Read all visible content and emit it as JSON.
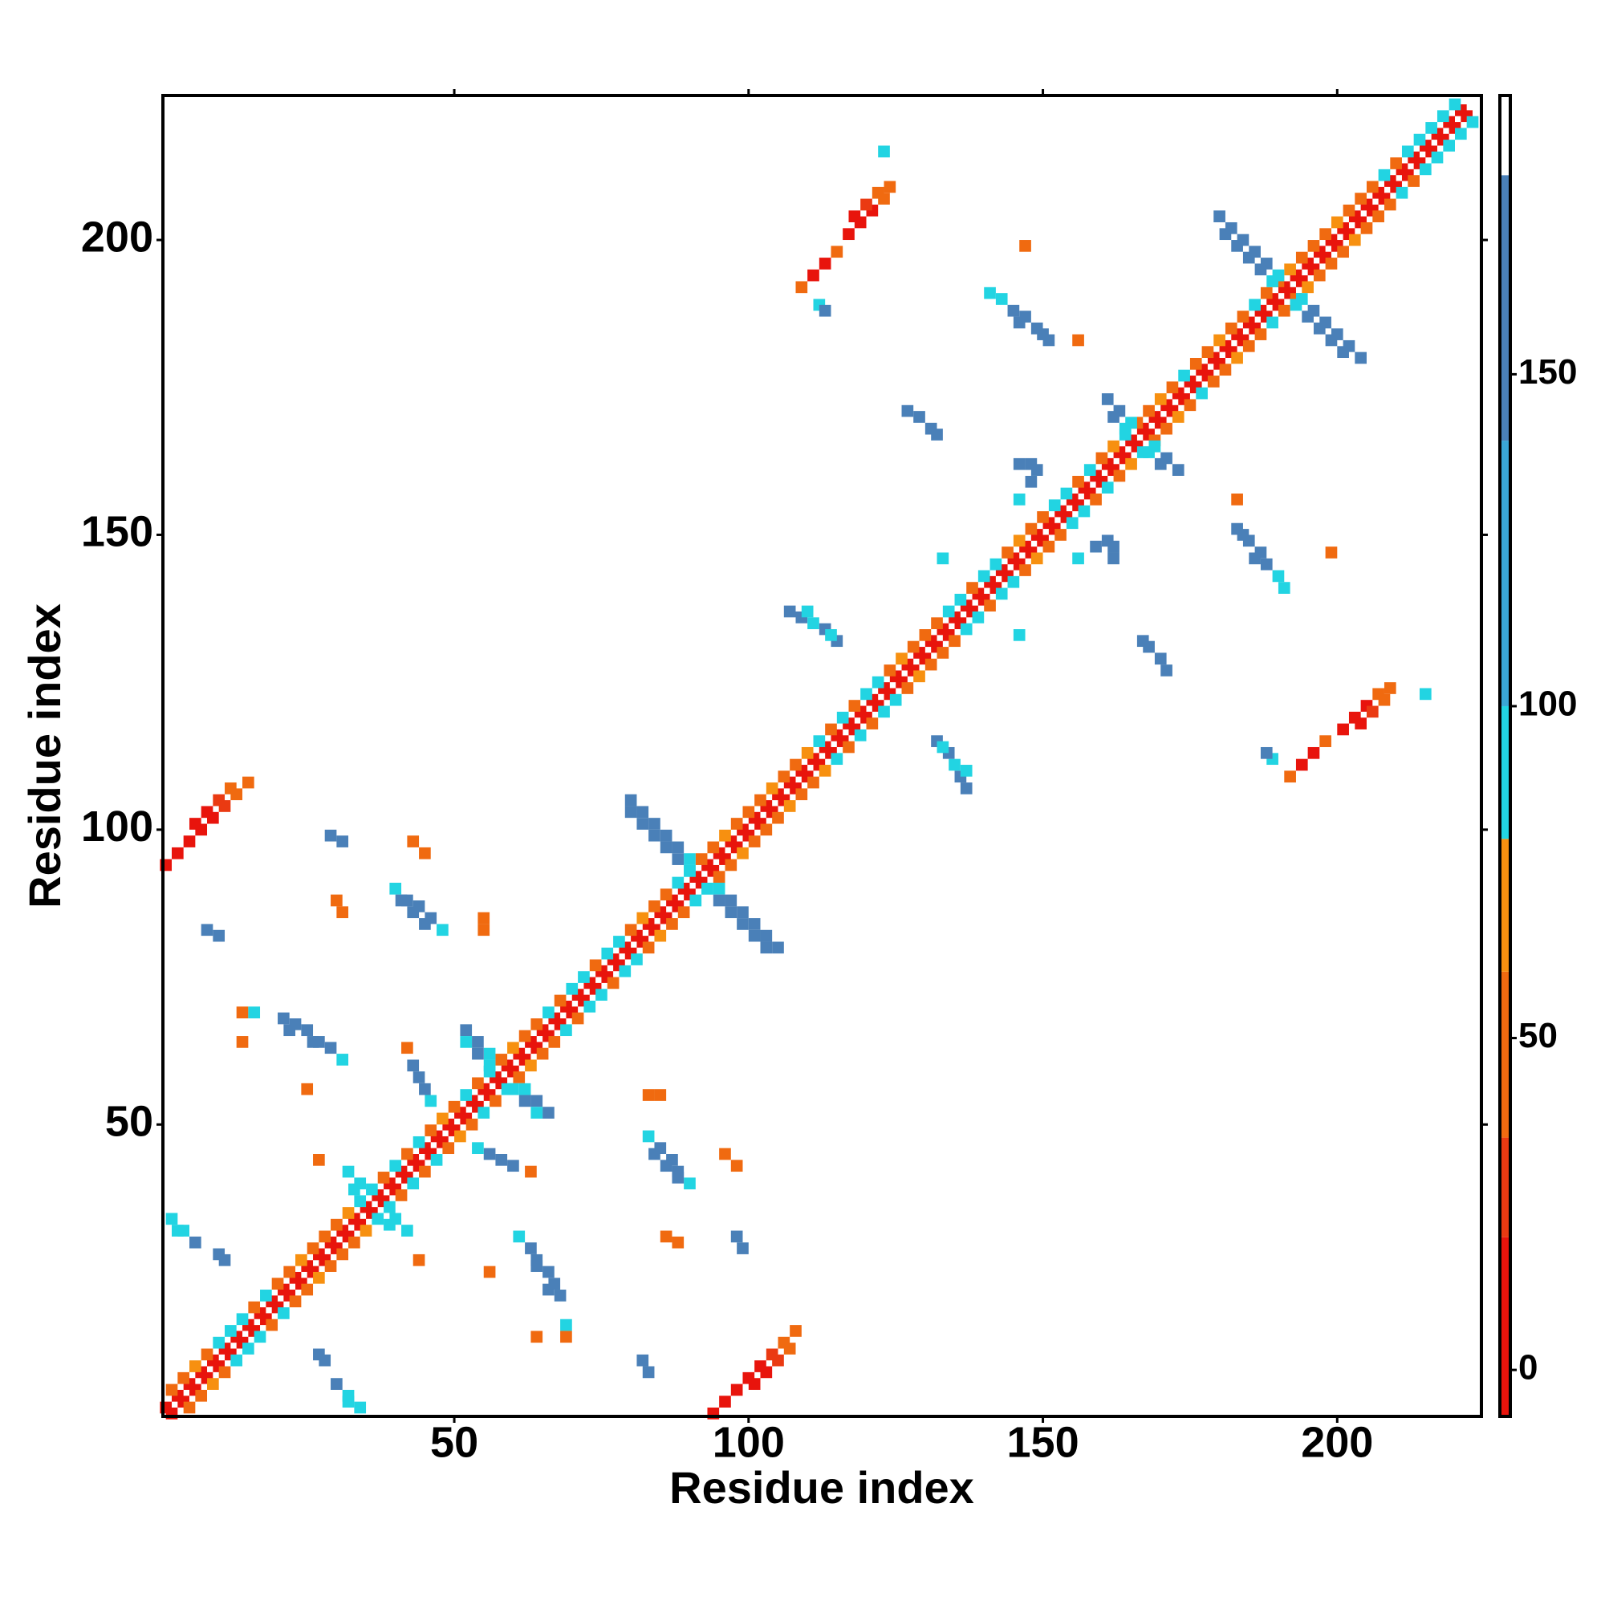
{
  "chart_data": {
    "type": "heatmap",
    "x_label": "Residue index",
    "y_label": "Residue index",
    "xlim": [
      0.5,
      224.5
    ],
    "ylim": [
      0.5,
      224.5
    ],
    "xticks": [
      50,
      100,
      150,
      200
    ],
    "yticks": [
      50,
      100,
      150,
      200
    ],
    "symmetric": true,
    "clim": [
      -7,
      192
    ],
    "cticks": [
      0,
      50,
      100,
      150
    ],
    "color_edges": [
      -7,
      20,
      35,
      60,
      80,
      100,
      140,
      180,
      192
    ],
    "colors": [
      "#e8140c",
      "#ea3a12",
      "#f06a10",
      "#f79010",
      "#22d4e2",
      "#3aa6d6",
      "#4a80b8",
      "#ffffff"
    ],
    "points": [
      [
        1,
        2,
        10
      ],
      [
        3,
        4,
        10
      ],
      [
        5,
        6,
        10
      ],
      [
        7,
        8,
        10
      ],
      [
        9,
        10,
        10
      ],
      [
        11,
        12,
        10
      ],
      [
        13,
        14,
        10
      ],
      [
        15,
        16,
        10
      ],
      [
        17,
        18,
        10
      ],
      [
        19,
        20,
        10
      ],
      [
        21,
        22,
        10
      ],
      [
        23,
        24,
        10
      ],
      [
        25,
        26,
        10
      ],
      [
        27,
        28,
        10
      ],
      [
        29,
        30,
        10
      ],
      [
        31,
        32,
        10
      ],
      [
        33,
        34,
        10
      ],
      [
        35,
        36,
        10
      ],
      [
        37,
        38,
        10
      ],
      [
        39,
        40,
        10
      ],
      [
        41,
        42,
        10
      ],
      [
        43,
        44,
        10
      ],
      [
        45,
        46,
        10
      ],
      [
        47,
        48,
        10
      ],
      [
        49,
        50,
        10
      ],
      [
        51,
        52,
        10
      ],
      [
        53,
        54,
        10
      ],
      [
        55,
        56,
        10
      ],
      [
        57,
        58,
        10
      ],
      [
        59,
        60,
        10
      ],
      [
        61,
        62,
        10
      ],
      [
        63,
        64,
        10
      ],
      [
        65,
        66,
        10
      ],
      [
        67,
        68,
        10
      ],
      [
        69,
        70,
        10
      ],
      [
        71,
        72,
        10
      ],
      [
        73,
        74,
        10
      ],
      [
        75,
        76,
        10
      ],
      [
        77,
        78,
        10
      ],
      [
        79,
        80,
        10
      ],
      [
        81,
        82,
        10
      ],
      [
        83,
        84,
        10
      ],
      [
        85,
        86,
        10
      ],
      [
        87,
        88,
        10
      ],
      [
        89,
        90,
        10
      ],
      [
        91,
        92,
        10
      ],
      [
        93,
        94,
        10
      ],
      [
        95,
        96,
        10
      ],
      [
        97,
        98,
        10
      ],
      [
        99,
        100,
        10
      ],
      [
        101,
        102,
        10
      ],
      [
        103,
        104,
        10
      ],
      [
        105,
        106,
        10
      ],
      [
        107,
        108,
        10
      ],
      [
        109,
        110,
        10
      ],
      [
        111,
        112,
        10
      ],
      [
        113,
        114,
        10
      ],
      [
        115,
        116,
        10
      ],
      [
        117,
        118,
        10
      ],
      [
        119,
        120,
        10
      ],
      [
        121,
        122,
        10
      ],
      [
        123,
        124,
        10
      ],
      [
        125,
        126,
        10
      ],
      [
        127,
        128,
        10
      ],
      [
        129,
        130,
        10
      ],
      [
        131,
        132,
        10
      ],
      [
        133,
        134,
        10
      ],
      [
        135,
        136,
        10
      ],
      [
        137,
        138,
        10
      ],
      [
        139,
        140,
        10
      ],
      [
        141,
        142,
        10
      ],
      [
        143,
        144,
        10
      ],
      [
        145,
        146,
        10
      ],
      [
        147,
        148,
        10
      ],
      [
        149,
        150,
        10
      ],
      [
        151,
        152,
        10
      ],
      [
        153,
        154,
        10
      ],
      [
        155,
        156,
        10
      ],
      [
        157,
        158,
        10
      ],
      [
        159,
        160,
        10
      ],
      [
        161,
        162,
        10
      ],
      [
        163,
        164,
        10
      ],
      [
        165,
        166,
        10
      ],
      [
        167,
        168,
        10
      ],
      [
        169,
        170,
        10
      ],
      [
        171,
        172,
        10
      ],
      [
        173,
        174,
        10
      ],
      [
        175,
        176,
        10
      ],
      [
        177,
        178,
        10
      ],
      [
        179,
        180,
        10
      ],
      [
        181,
        182,
        10
      ],
      [
        183,
        184,
        10
      ],
      [
        185,
        186,
        10
      ],
      [
        187,
        188,
        10
      ],
      [
        189,
        190,
        10
      ],
      [
        191,
        192,
        10
      ],
      [
        193,
        194,
        10
      ],
      [
        195,
        196,
        10
      ],
      [
        197,
        198,
        10
      ],
      [
        199,
        200,
        10
      ],
      [
        201,
        202,
        10
      ],
      [
        203,
        204,
        10
      ],
      [
        205,
        206,
        10
      ],
      [
        207,
        208,
        10
      ],
      [
        209,
        210,
        10
      ],
      [
        211,
        212,
        10
      ],
      [
        213,
        214,
        10
      ],
      [
        215,
        216,
        10
      ],
      [
        217,
        218,
        10
      ],
      [
        219,
        220,
        10
      ],
      [
        221,
        222,
        10
      ],
      [
        2,
        5,
        55
      ],
      [
        4,
        7,
        55
      ],
      [
        6,
        9,
        70
      ],
      [
        8,
        11,
        55
      ],
      [
        10,
        13,
        90
      ],
      [
        12,
        15,
        90
      ],
      [
        14,
        17,
        90
      ],
      [
        16,
        19,
        55
      ],
      [
        18,
        21,
        90
      ],
      [
        20,
        23,
        55
      ],
      [
        22,
        25,
        55
      ],
      [
        24,
        27,
        70
      ],
      [
        26,
        29,
        55
      ],
      [
        28,
        31,
        55
      ],
      [
        30,
        33,
        55
      ],
      [
        32,
        35,
        70
      ],
      [
        34,
        37,
        90
      ],
      [
        36,
        39,
        90
      ],
      [
        38,
        41,
        55
      ],
      [
        40,
        43,
        90
      ],
      [
        42,
        45,
        55
      ],
      [
        44,
        47,
        90
      ],
      [
        46,
        49,
        55
      ],
      [
        48,
        51,
        70
      ],
      [
        50,
        53,
        55
      ],
      [
        52,
        55,
        90
      ],
      [
        54,
        57,
        55
      ],
      [
        56,
        59,
        90
      ],
      [
        58,
        61,
        55
      ],
      [
        60,
        63,
        70
      ],
      [
        62,
        65,
        55
      ],
      [
        64,
        67,
        55
      ],
      [
        66,
        69,
        90
      ],
      [
        68,
        71,
        55
      ],
      [
        70,
        73,
        90
      ],
      [
        72,
        75,
        90
      ],
      [
        74,
        77,
        55
      ],
      [
        76,
        79,
        90
      ],
      [
        78,
        81,
        90
      ],
      [
        80,
        83,
        55
      ],
      [
        82,
        85,
        70
      ],
      [
        84,
        87,
        55
      ],
      [
        86,
        89,
        55
      ],
      [
        88,
        91,
        90
      ],
      [
        90,
        93,
        90
      ],
      [
        92,
        95,
        55
      ],
      [
        94,
        97,
        55
      ],
      [
        96,
        99,
        70
      ],
      [
        98,
        101,
        55
      ],
      [
        100,
        103,
        55
      ],
      [
        102,
        105,
        55
      ],
      [
        104,
        107,
        70
      ],
      [
        106,
        109,
        55
      ],
      [
        108,
        111,
        55
      ],
      [
        110,
        113,
        70
      ],
      [
        112,
        115,
        90
      ],
      [
        114,
        117,
        55
      ],
      [
        116,
        119,
        90
      ],
      [
        118,
        121,
        55
      ],
      [
        120,
        123,
        90
      ],
      [
        122,
        125,
        90
      ],
      [
        124,
        127,
        55
      ],
      [
        126,
        129,
        70
      ],
      [
        128,
        131,
        55
      ],
      [
        130,
        133,
        55
      ],
      [
        132,
        135,
        55
      ],
      [
        134,
        137,
        90
      ],
      [
        136,
        139,
        90
      ],
      [
        138,
        141,
        55
      ],
      [
        140,
        143,
        90
      ],
      [
        142,
        145,
        90
      ],
      [
        144,
        147,
        55
      ],
      [
        146,
        149,
        70
      ],
      [
        148,
        151,
        55
      ],
      [
        150,
        153,
        55
      ],
      [
        152,
        155,
        90
      ],
      [
        154,
        157,
        90
      ],
      [
        156,
        159,
        55
      ],
      [
        158,
        161,
        90
      ],
      [
        160,
        163,
        55
      ],
      [
        162,
        165,
        70
      ],
      [
        164,
        167,
        90
      ],
      [
        166,
        169,
        55
      ],
      [
        168,
        171,
        55
      ],
      [
        170,
        173,
        70
      ],
      [
        172,
        175,
        55
      ],
      [
        174,
        177,
        90
      ],
      [
        176,
        179,
        55
      ],
      [
        178,
        181,
        55
      ],
      [
        180,
        183,
        70
      ],
      [
        182,
        185,
        55
      ],
      [
        184,
        187,
        55
      ],
      [
        186,
        189,
        90
      ],
      [
        188,
        191,
        55
      ],
      [
        190,
        193,
        55
      ],
      [
        192,
        195,
        70
      ],
      [
        194,
        197,
        55
      ],
      [
        196,
        199,
        55
      ],
      [
        198,
        201,
        55
      ],
      [
        200,
        203,
        70
      ],
      [
        202,
        205,
        55
      ],
      [
        204,
        207,
        55
      ],
      [
        206,
        209,
        55
      ],
      [
        208,
        211,
        90
      ],
      [
        210,
        213,
        55
      ],
      [
        212,
        215,
        90
      ],
      [
        214,
        217,
        90
      ],
      [
        216,
        219,
        90
      ],
      [
        218,
        221,
        90
      ],
      [
        220,
        223,
        90
      ],
      [
        80,
        105,
        150
      ],
      [
        82,
        103,
        150
      ],
      [
        84,
        101,
        150
      ],
      [
        86,
        99,
        150
      ],
      [
        88,
        97,
        150
      ],
      [
        90,
        95,
        90
      ],
      [
        80,
        103,
        150
      ],
      [
        82,
        101,
        150
      ],
      [
        84,
        99,
        150
      ],
      [
        86,
        97,
        150
      ],
      [
        88,
        95,
        150
      ],
      [
        90,
        93,
        90
      ],
      [
        52,
        66,
        150
      ],
      [
        54,
        64,
        150
      ],
      [
        56,
        62,
        90
      ],
      [
        52,
        64,
        90
      ],
      [
        54,
        62,
        150
      ],
      [
        56,
        60,
        90
      ],
      [
        180,
        204,
        150
      ],
      [
        182,
        202,
        150
      ],
      [
        184,
        200,
        150
      ],
      [
        186,
        198,
        150
      ],
      [
        188,
        196,
        150
      ],
      [
        190,
        194,
        90
      ],
      [
        181,
        201,
        150
      ],
      [
        183,
        199,
        150
      ],
      [
        185,
        197,
        150
      ],
      [
        187,
        195,
        150
      ],
      [
        189,
        193,
        90
      ],
      [
        161,
        173,
        150
      ],
      [
        163,
        171,
        150
      ],
      [
        165,
        169,
        90
      ],
      [
        162,
        170,
        150
      ],
      [
        164,
        168,
        90
      ],
      [
        32,
        42,
        90
      ],
      [
        34,
        40,
        90
      ],
      [
        33,
        39,
        90
      ],
      [
        1,
        94,
        10
      ],
      [
        3,
        96,
        10
      ],
      [
        5,
        98,
        10
      ],
      [
        7,
        100,
        10
      ],
      [
        9,
        102,
        10
      ],
      [
        11,
        104,
        20
      ],
      [
        13,
        106,
        40
      ],
      [
        15,
        108,
        55
      ],
      [
        6,
        101,
        10
      ],
      [
        8,
        103,
        10
      ],
      [
        10,
        105,
        20
      ],
      [
        12,
        107,
        55
      ],
      [
        109,
        192,
        55
      ],
      [
        111,
        194,
        10
      ],
      [
        113,
        196,
        10
      ],
      [
        115,
        198,
        40
      ],
      [
        117,
        201,
        10
      ],
      [
        119,
        203,
        10
      ],
      [
        121,
        205,
        10
      ],
      [
        123,
        207,
        40
      ],
      [
        118,
        204,
        10
      ],
      [
        120,
        206,
        20
      ],
      [
        122,
        208,
        40
      ],
      [
        124,
        209,
        55
      ],
      [
        40,
        90,
        90
      ],
      [
        42,
        88,
        150
      ],
      [
        44,
        87,
        150
      ],
      [
        46,
        85,
        150
      ],
      [
        48,
        83,
        90
      ],
      [
        41,
        88,
        150
      ],
      [
        43,
        86,
        150
      ],
      [
        45,
        84,
        150
      ],
      [
        21,
        68,
        150
      ],
      [
        23,
        67,
        150
      ],
      [
        25,
        66,
        150
      ],
      [
        27,
        64,
        150
      ],
      [
        29,
        63,
        150
      ],
      [
        31,
        61,
        90
      ],
      [
        22,
        66,
        150
      ],
      [
        26,
        64,
        150
      ],
      [
        42,
        63,
        55
      ],
      [
        43,
        60,
        150
      ],
      [
        44,
        58,
        150
      ],
      [
        45,
        56,
        150
      ],
      [
        46,
        54,
        90
      ],
      [
        2,
        34,
        90
      ],
      [
        4,
        32,
        90
      ],
      [
        6,
        30,
        150
      ],
      [
        3,
        32,
        90
      ],
      [
        141,
        191,
        90
      ],
      [
        143,
        190,
        90
      ],
      [
        145,
        188,
        150
      ],
      [
        147,
        187,
        150
      ],
      [
        149,
        185,
        150
      ],
      [
        151,
        183,
        150
      ],
      [
        146,
        186,
        150
      ],
      [
        150,
        184,
        150
      ],
      [
        127,
        171,
        150
      ],
      [
        129,
        170,
        150
      ],
      [
        131,
        168,
        150
      ],
      [
        132,
        167,
        150
      ],
      [
        107,
        137,
        150
      ],
      [
        109,
        136,
        150
      ],
      [
        111,
        135,
        90
      ],
      [
        113,
        134,
        150
      ],
      [
        115,
        132,
        150
      ],
      [
        110,
        137,
        90
      ],
      [
        114,
        133,
        90
      ],
      [
        146,
        156,
        90
      ],
      [
        148,
        159,
        150
      ],
      [
        149,
        161,
        150
      ],
      [
        147,
        199,
        55
      ],
      [
        156,
        183,
        55
      ],
      [
        43,
        98,
        55
      ],
      [
        30,
        88,
        40
      ],
      [
        55,
        85,
        55
      ],
      [
        14,
        69,
        55
      ],
      [
        25,
        56,
        55
      ],
      [
        55,
        83,
        40
      ],
      [
        45,
        96,
        55
      ],
      [
        31,
        86,
        40
      ],
      [
        27,
        44,
        55
      ],
      [
        14,
        64,
        55
      ],
      [
        29,
        99,
        150
      ],
      [
        10,
        82,
        150
      ],
      [
        11,
        27,
        150
      ],
      [
        31,
        98,
        150
      ],
      [
        146,
        162,
        150
      ],
      [
        148,
        162,
        150
      ],
      [
        133,
        146,
        90
      ],
      [
        112,
        189,
        90
      ],
      [
        123,
        215,
        90
      ],
      [
        113,
        188,
        150
      ],
      [
        8,
        83,
        150
      ],
      [
        16,
        69,
        90
      ],
      [
        10,
        28,
        150
      ]
    ]
  }
}
